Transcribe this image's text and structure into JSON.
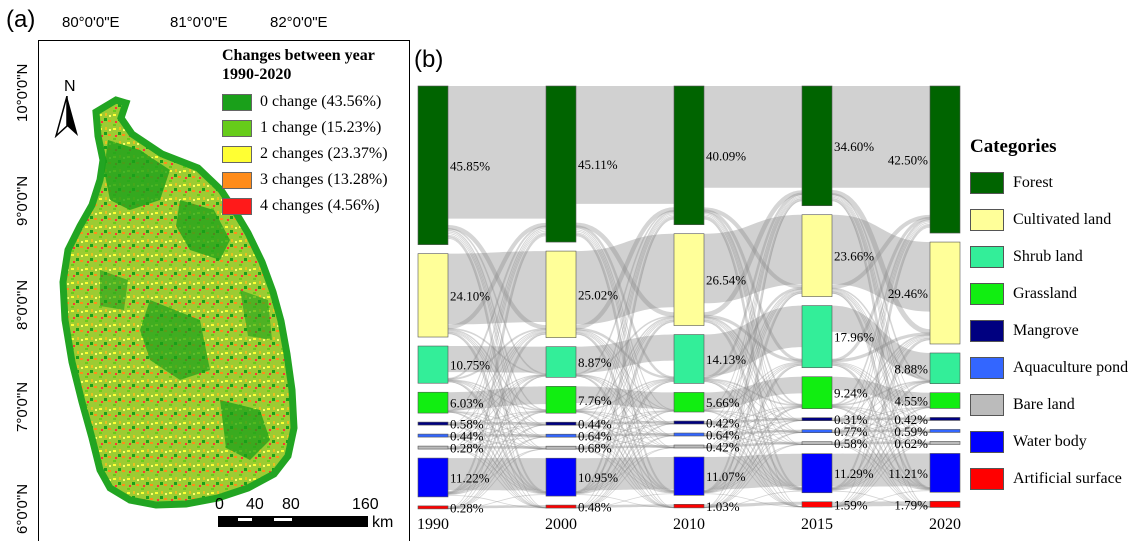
{
  "panel_a": {
    "label": "(a)",
    "lon_labels": [
      "80°0'0\"E",
      "81°0'0\"E",
      "82°0'0\"E"
    ],
    "lat_labels": [
      "10°0'0\"N",
      "9°0'0\"N",
      "8°0'0\"N",
      "7°0'0\"N",
      "6°0'0\"N"
    ],
    "north_label": "N",
    "legend": {
      "title_line1": "Changes between year",
      "title_line2": "1990-2020",
      "items": [
        {
          "label": "0 change (43.56%)",
          "color": "#1aa01a"
        },
        {
          "label": "1 change (15.23%)",
          "color": "#66cc1a"
        },
        {
          "label": "2 changes (23.37%)",
          "color": "#ffff33"
        },
        {
          "label": "3 changes (13.28%)",
          "color": "#ff8c1a"
        },
        {
          "label": "4 changes (4.56%)",
          "color": "#ff1a1a"
        }
      ]
    },
    "scale_bar": {
      "ticks": [
        "0",
        "40",
        "80",
        "160"
      ],
      "unit": "km"
    }
  },
  "panel_b": {
    "label": "(b)",
    "legend_title": "Categories"
  },
  "chart_data": {
    "type": "sankey",
    "years": [
      "1990",
      "2000",
      "2010",
      "2015",
      "2020"
    ],
    "categories": [
      {
        "name": "Forest",
        "color": "#006400"
      },
      {
        "name": "Cultivated land",
        "color": "#ffff99"
      },
      {
        "name": "Shrub land",
        "color": "#33ee99"
      },
      {
        "name": "Grassland",
        "color": "#11ee11"
      },
      {
        "name": "Mangrove",
        "color": "#000080"
      },
      {
        "name": "Aquaculture pond",
        "color": "#3366ff"
      },
      {
        "name": "Bare land",
        "color": "#bbbbbb"
      },
      {
        "name": "Water body",
        "color": "#0000ff"
      },
      {
        "name": "Artificial surface",
        "color": "#ff0000"
      }
    ],
    "series": [
      {
        "year": "1990",
        "values": [
          45.85,
          24.1,
          10.75,
          6.03,
          0.58,
          0.44,
          0.28,
          11.22,
          0.28
        ],
        "labels": [
          "45.85%",
          "24.10%",
          "10.75%",
          "6.03%",
          "0.58%",
          "0.44%",
          "0.28%",
          "11.22%",
          "0.28%"
        ]
      },
      {
        "year": "2000",
        "values": [
          45.11,
          25.02,
          8.87,
          7.76,
          0.44,
          0.64,
          0.68,
          10.95,
          0.48
        ],
        "labels": [
          "45.11%",
          "25.02%",
          "8.87%",
          "7.76%",
          "0.44%",
          "0.64%",
          "0.68%",
          "10.95%",
          "0.48%"
        ]
      },
      {
        "year": "2010",
        "values": [
          40.09,
          26.54,
          14.13,
          5.66,
          0.42,
          0.64,
          0.42,
          11.07,
          1.03
        ],
        "labels": [
          "40.09%",
          "26.54%",
          "14.13%",
          "5.66%",
          "0.42%",
          "0.64%",
          "0.42%",
          "11.07%",
          "1.03%"
        ]
      },
      {
        "year": "2015",
        "values": [
          34.6,
          23.66,
          17.96,
          9.24,
          0.31,
          0.77,
          0.58,
          11.29,
          1.59
        ],
        "labels": [
          "34.60%",
          "23.66%",
          "17.96%",
          "9.24%",
          "0.31%",
          "0.77%",
          "0.58%",
          "11.29%",
          "1.59%"
        ]
      },
      {
        "year": "2020",
        "values": [
          42.5,
          29.46,
          8.88,
          4.55,
          0.42,
          0.59,
          0.62,
          11.21,
          1.79
        ],
        "labels": [
          "42.50%",
          "29.46%",
          "8.88%",
          "4.55%",
          "0.42%",
          "0.59%",
          "0.62%",
          "11.21%",
          "1.79%"
        ]
      }
    ]
  }
}
